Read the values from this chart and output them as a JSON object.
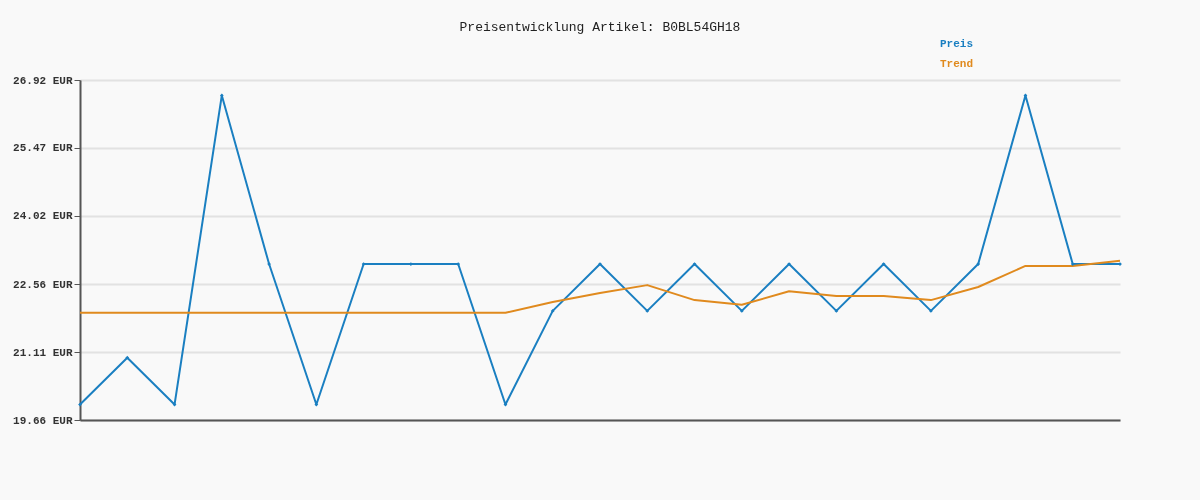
{
  "chart_data": {
    "type": "line",
    "title": "Preisentwicklung Artikel: B0BL54GH18",
    "categories": [
      null,
      null,
      null,
      null,
      null,
      null,
      null,
      null,
      null,
      null,
      null,
      null,
      null,
      null,
      null,
      null,
      null,
      null,
      null,
      null,
      null,
      null,
      null
    ],
    "series": [
      {
        "name": "Preis",
        "color": "#1a7fc1",
        "marker": "diamond",
        "values": [
          19.99,
          20.99,
          19.99,
          26.59,
          22.99,
          19.99,
          22.99,
          22.99,
          22.99,
          19.99,
          21.99,
          22.99,
          21.99,
          22.99,
          21.99,
          22.99,
          21.99,
          22.99,
          21.99,
          22.99,
          26.59,
          22.99,
          22.99
        ]
      },
      {
        "name": "Trend",
        "color": "#e08a1e",
        "marker": "none",
        "values": [
          21.95,
          21.95,
          21.95,
          21.95,
          21.95,
          21.95,
          21.95,
          21.95,
          21.95,
          21.95,
          22.18,
          22.37,
          22.54,
          22.22,
          22.12,
          22.41,
          22.31,
          22.31,
          22.22,
          22.5,
          22.95,
          22.95,
          23.06
        ]
      }
    ],
    "ylim": [
      19.66,
      26.92
    ],
    "yticks": [
      {
        "value": 19.66,
        "label": "19.66 EUR"
      },
      {
        "value": 21.11,
        "label": "21.11 EUR"
      },
      {
        "value": 22.56,
        "label": "22.56 EUR"
      },
      {
        "value": 24.02,
        "label": "24.02 EUR"
      },
      {
        "value": 25.47,
        "label": "25.47 EUR"
      },
      {
        "value": 26.92,
        "label": "26.92 EUR"
      }
    ],
    "grid": "y",
    "legend": "top right",
    "tick_labels": "y"
  }
}
